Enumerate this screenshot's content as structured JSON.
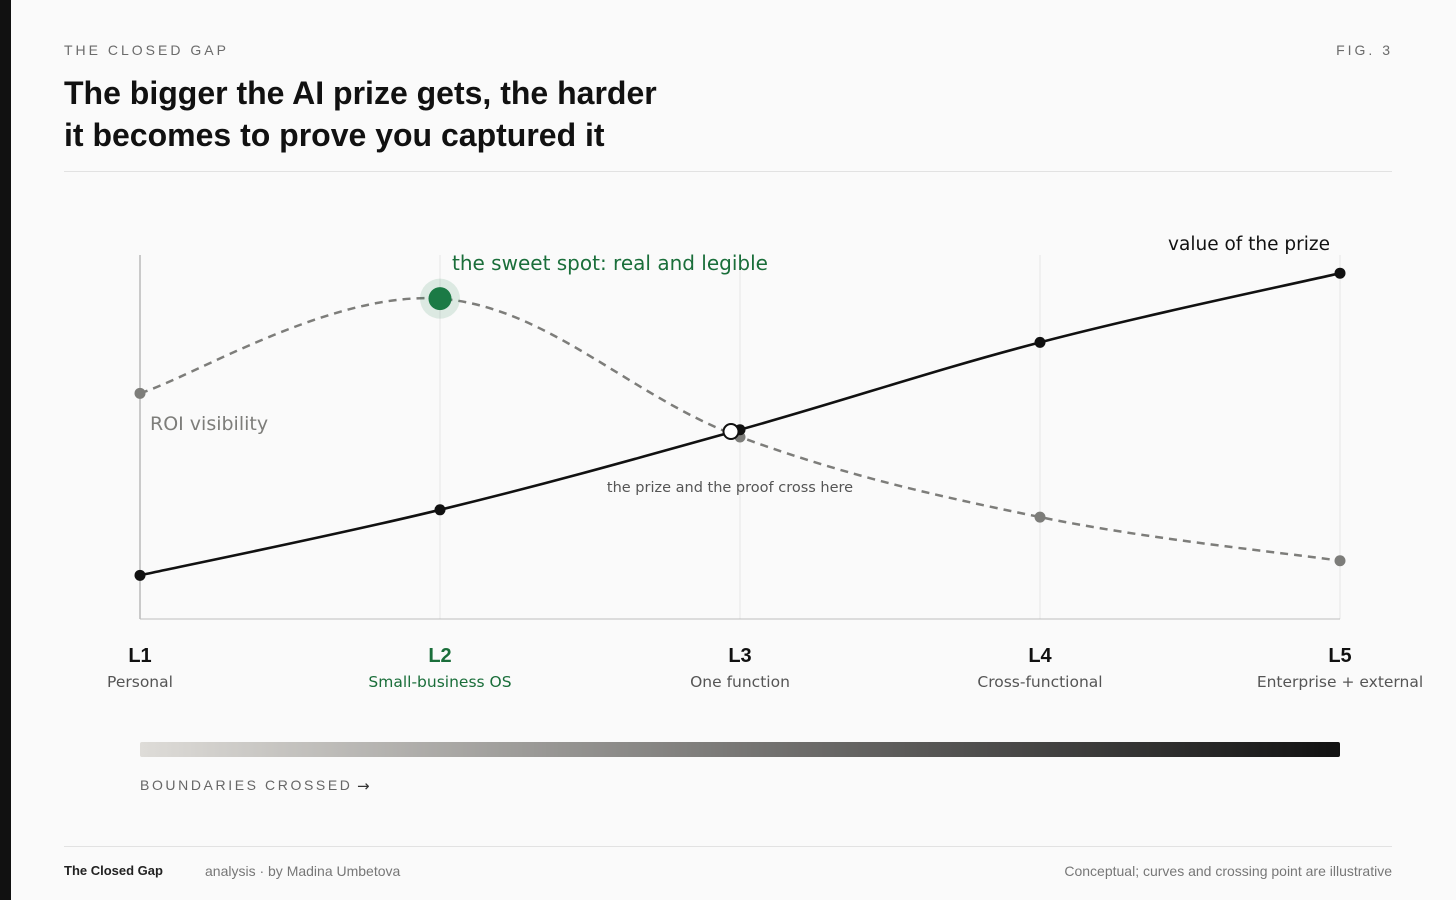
{
  "header": {
    "kicker": "THE CLOSED GAP",
    "figure": "FIG. 3",
    "title_line1": "The bigger the AI prize gets, the harder",
    "title_line2": "it becomes to prove you captured it"
  },
  "footer": {
    "brand": "The Closed Gap",
    "byline": "analysis · by Madina Umbetova",
    "note": "Conceptual; curves and crossing point are illustrative"
  },
  "colors": {
    "prize": "#111111",
    "roi": "#7d7d7a",
    "accent": "#1b7a45",
    "accent_text": "#1a6e3a",
    "muted_label": "#777777",
    "grid": "#e6e6e6"
  },
  "chart_data": {
    "type": "line",
    "title": "The bigger the AI prize gets, the harder it becomes to prove you captured it",
    "xlabel": "BOUNDARIES CROSSED",
    "ylabel": "",
    "categories": [
      {
        "code": "L1",
        "name": "Personal"
      },
      {
        "code": "L2",
        "name": "Small-business OS"
      },
      {
        "code": "L3",
        "name": "One function"
      },
      {
        "code": "L4",
        "name": "Cross-functional"
      },
      {
        "code": "L5",
        "name": "Enterprise + external"
      }
    ],
    "highlight_index": 1,
    "ylim": [
      0,
      100
    ],
    "series": [
      {
        "name": "value of the prize",
        "style": "solid",
        "values": [
          12,
          30,
          52,
          76,
          95
        ]
      },
      {
        "name": "ROI visibility",
        "style": "dashed",
        "values": [
          62,
          88,
          50,
          28,
          16
        ]
      }
    ],
    "annotations": {
      "sweet_spot": "the sweet spot: real and legible",
      "crossing": "the prize and the proof cross here"
    },
    "crossing_point": {
      "x": 1.97,
      "y": 51.5
    },
    "gradient_axis": {
      "from": "#dedcd8",
      "to": "#111111"
    },
    "grid": true,
    "arrow": "→"
  }
}
